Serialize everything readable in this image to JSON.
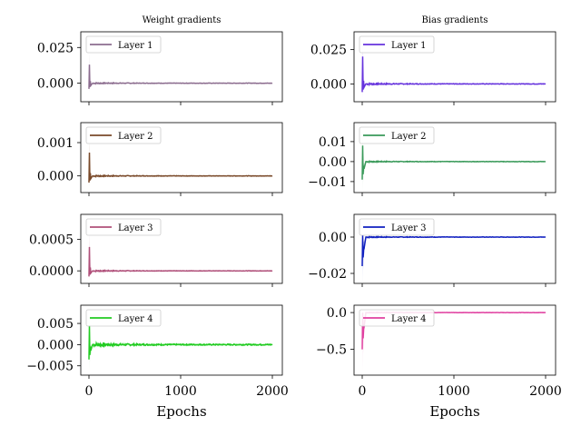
{
  "chart_data": {
    "type": "line",
    "xlabel": "Epochs",
    "x_range": [
      0,
      2000
    ],
    "x_ticks": [
      0,
      1000,
      2000
    ],
    "x_tick_labels": [
      "0",
      "1000",
      "2000"
    ],
    "columns": [
      {
        "title": "Weight gradients",
        "panels": [
          {
            "legend": "Layer 1",
            "color": "#8c6d8f",
            "ylim": [
              -0.013,
              0.036
            ],
            "yticks": [
              0.0,
              0.025
            ],
            "ytick_labels": [
              "0.000",
              "0.025"
            ],
            "peak": 0.013,
            "trough": -0.004,
            "noise": 0.0004
          },
          {
            "legend": "Layer 2",
            "color": "#7a4a2a",
            "ylim": [
              -0.0005,
              0.0016
            ],
            "yticks": [
              0.0,
              0.001
            ],
            "ytick_labels": [
              "0.000",
              "0.001"
            ],
            "peak": 0.0007,
            "trough": -0.0002,
            "noise": 2e-05
          },
          {
            "legend": "Layer 3",
            "color": "#b0507a",
            "ylim": [
              -0.0002,
              0.0009
            ],
            "yticks": [
              0.0,
              0.0005
            ],
            "ytick_labels": [
              "0.0000",
              "0.0005"
            ],
            "peak": 0.00038,
            "trough": -9e-05,
            "noise": 1e-05
          },
          {
            "legend": "Layer 4",
            "color": "#22cc22",
            "ylim": [
              -0.0072,
              0.0093
            ],
            "yticks": [
              -0.005,
              0.0,
              0.005
            ],
            "ytick_labels": [
              "−0.005",
              "0.000",
              "0.005"
            ],
            "peak": 0.0045,
            "trough": -0.0035,
            "noise": 0.0004
          }
        ]
      },
      {
        "title": "Bias gradients",
        "panels": [
          {
            "legend": "Layer 1",
            "color": "#6633dd",
            "ylim": [
              -0.013,
              0.038
            ],
            "yticks": [
              0.0,
              0.025
            ],
            "ytick_labels": [
              "0.000",
              "0.025"
            ],
            "peak": 0.02,
            "trough": -0.006,
            "noise": 0.0006
          },
          {
            "legend": "Layer 2",
            "color": "#3a9a5a",
            "ylim": [
              -0.0155,
              0.0195
            ],
            "yticks": [
              -0.01,
              0.0,
              0.01
            ],
            "ytick_labels": [
              "−0.01",
              "0.00",
              "0.01"
            ],
            "peak": 0.008,
            "trough": -0.009,
            "noise": 0.0003
          },
          {
            "legend": "Layer 3",
            "color": "#1020c0",
            "ylim": [
              -0.0255,
              0.0125
            ],
            "yticks": [
              -0.02,
              0.0
            ],
            "ytick_labels": [
              "−0.02",
              "0.00"
            ],
            "peak": 0.001,
            "trough": -0.016,
            "noise": 0.0003
          },
          {
            "legend": "Layer 4",
            "color": "#e040a0",
            "ylim": [
              -0.85,
              0.1
            ],
            "yticks": [
              -0.5,
              0.0
            ],
            "ytick_labels": [
              "−0.5",
              "0.0"
            ],
            "peak": 0.0,
            "trough": -0.5,
            "noise": 0.005
          }
        ]
      }
    ]
  }
}
